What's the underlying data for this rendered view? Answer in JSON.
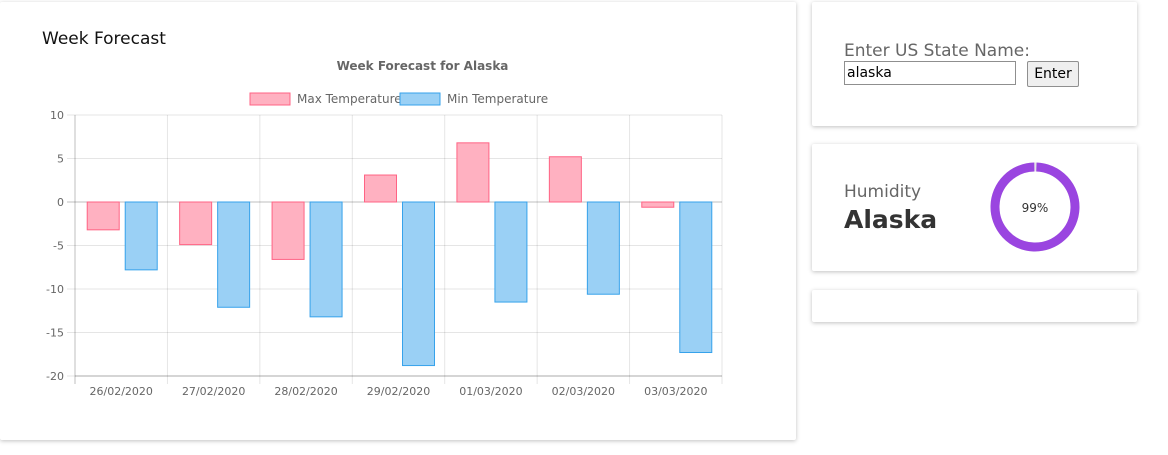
{
  "forecast_card": {
    "title": "Week Forecast"
  },
  "chart_data": {
    "type": "bar",
    "title": "Week Forecast for Alaska",
    "categories": [
      "26/02/2020",
      "27/02/2020",
      "28/02/2020",
      "29/02/2020",
      "01/03/2020",
      "02/03/2020",
      "03/03/2020"
    ],
    "series": [
      {
        "name": "Max Temperature",
        "values": [
          -3.2,
          -4.9,
          -6.6,
          3.1,
          6.8,
          5.2,
          -0.6
        ],
        "color": "#ffb1c1",
        "border": "#ff6384"
      },
      {
        "name": "Min Temperature",
        "values": [
          -7.8,
          -12.1,
          -13.2,
          -18.8,
          -11.5,
          -10.6,
          -17.3
        ],
        "color": "#9ad0f5",
        "border": "#36a2eb"
      }
    ],
    "ylim": [
      -20,
      10
    ],
    "yticks": [
      10,
      5,
      0,
      -5,
      -10,
      -15,
      -20
    ],
    "legend": "top",
    "grid": true
  },
  "state_form": {
    "label": "Enter US State Name:",
    "value": "alaska",
    "button_label": "Enter"
  },
  "humidity": {
    "label": "Humidity",
    "state": "Alaska",
    "percent": 99,
    "percent_label": "99%",
    "ring_color": "#9a45e0"
  }
}
